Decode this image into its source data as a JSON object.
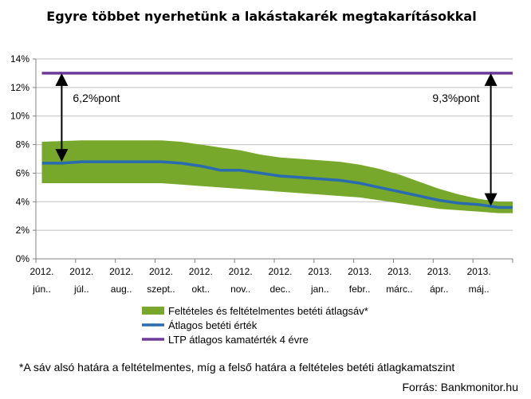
{
  "chart_data": {
    "type": "line",
    "title": "Egyre többet nyerhetünk a lakástakarék megtakarításokkal",
    "y_ticks": [
      "0%",
      "2%",
      "4%",
      "6%",
      "8%",
      "10%",
      "12%",
      "14%"
    ],
    "ylim": [
      0,
      14
    ],
    "y_unit": "%",
    "x_ticks": [
      {
        "year": "2012.",
        "month": "jún.."
      },
      {
        "year": "2012.",
        "month": "júl.."
      },
      {
        "year": "2012.",
        "month": "aug.."
      },
      {
        "year": "2012.",
        "month": "szept.."
      },
      {
        "year": "2012.",
        "month": "okt.."
      },
      {
        "year": "2012.",
        "month": "nov.."
      },
      {
        "year": "2012.",
        "month": "dec.."
      },
      {
        "year": "2013.",
        "month": "jan.."
      },
      {
        "year": "2013.",
        "month": "febr.."
      },
      {
        "year": "2013.",
        "month": "márc.."
      },
      {
        "year": "2013.",
        "month": "ápr.."
      },
      {
        "year": "2013.",
        "month": "máj.."
      }
    ],
    "grid": "horizontal",
    "legend_position": "bottom",
    "band": {
      "name": "Feltételes és feltételmentes betéti átlagsáv*",
      "color": "#77a82c",
      "x": [
        0,
        1,
        2,
        3,
        3.5,
        4,
        4.5,
        5,
        5.5,
        6,
        6.5,
        7,
        7.5,
        8,
        8.5,
        9,
        9.5,
        10,
        10.5,
        11,
        11.5,
        11.85
      ],
      "lower": [
        5.3,
        5.3,
        5.3,
        5.3,
        5.2,
        5.1,
        5.0,
        4.9,
        4.8,
        4.7,
        4.6,
        4.5,
        4.4,
        4.3,
        4.1,
        3.9,
        3.7,
        3.5,
        3.4,
        3.3,
        3.2,
        3.2
      ],
      "upper": [
        8.2,
        8.3,
        8.3,
        8.3,
        8.2,
        8.0,
        7.8,
        7.6,
        7.3,
        7.1,
        7.0,
        6.9,
        6.8,
        6.6,
        6.3,
        5.9,
        5.4,
        4.9,
        4.5,
        4.2,
        4.0,
        4.0
      ]
    },
    "series": [
      {
        "name": "Átlagos betéti érték",
        "color": "#2a6bb0",
        "x": [
          0,
          0.5,
          1,
          1.5,
          2,
          2.5,
          3,
          3.5,
          4,
          4.5,
          5,
          5.5,
          6,
          6.5,
          7,
          7.5,
          8,
          8.5,
          9,
          9.5,
          10,
          10.5,
          11,
          11.5,
          11.85
        ],
        "values": [
          6.7,
          6.7,
          6.8,
          6.8,
          6.8,
          6.8,
          6.8,
          6.7,
          6.5,
          6.2,
          6.2,
          6.0,
          5.8,
          5.7,
          5.6,
          5.5,
          5.3,
          5.0,
          4.7,
          4.4,
          4.1,
          3.9,
          3.8,
          3.6,
          3.6
        ]
      },
      {
        "name": "LTP átlagos kamatérték 4 évre",
        "color": "#6e3b9a",
        "x": [
          0,
          11.85
        ],
        "values": [
          13.0,
          13.0
        ]
      }
    ],
    "annotations": [
      {
        "text": "6,2%pont",
        "x": 0.5,
        "from": 6.8,
        "to": 13.0
      },
      {
        "text": "9,3%pont",
        "x": 11.3,
        "from": 3.7,
        "to": 13.0
      }
    ]
  },
  "footnote": "*A sáv alsó határa a feltételmentes, míg a felső határa a feltételes betéti átlagkamatszint",
  "source": "Forrás: Bankmonitor.hu"
}
